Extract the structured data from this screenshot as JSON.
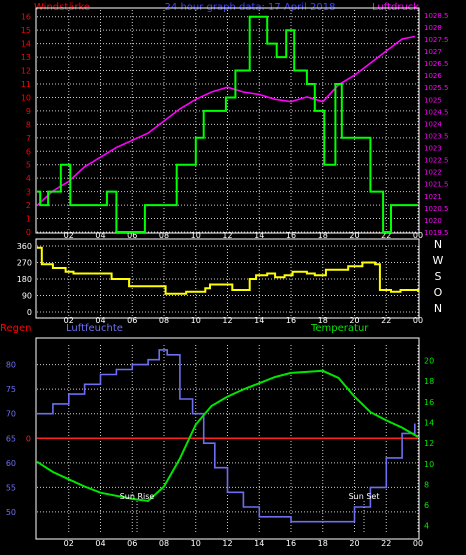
{
  "colors": {
    "background": "#000000",
    "frame": "#ffffff",
    "wind": "#00ff00",
    "pressure": "#ff00ff",
    "direction": "#ffff00",
    "humidity": "#6e6ef0",
    "temperature": "#00e600",
    "rain": "#ff2020",
    "title": "#4040ff",
    "left_label": "#ff0000",
    "right_label": "#ff00ff",
    "humidity_label": "#6e6ef0",
    "temperature_label": "#00e600",
    "ticks_white": "#ffffff",
    "dotted": "#cccccc"
  },
  "header": {
    "left": "Windstärke",
    "title": "24 hour graph data: 17 April 2018",
    "right": "Luftdruck"
  },
  "labels": {
    "rain": "Regen",
    "humidity": "Luftfeuchte",
    "temperature": "Temperatur",
    "sunrise": "Sun Rise",
    "sunset": "Sun Set"
  },
  "compass": [
    "N",
    "W",
    "S",
    "O",
    "N"
  ],
  "chart_data": [
    {
      "type": "line",
      "name": "wind_pressure",
      "xticks": [
        "02",
        "04",
        "06",
        "08",
        "10",
        "12",
        "14",
        "16",
        "18",
        "20",
        "22",
        "00"
      ],
      "yticks_left": [
        "0",
        "1",
        "2",
        "3",
        "4",
        "5",
        "6",
        "7",
        "8",
        "9",
        "10",
        "11",
        "12",
        "13",
        "14",
        "15",
        "16"
      ],
      "yticks_right": [
        "1019.5",
        "1020",
        "1020.5",
        "1021",
        "1021.5",
        "1022",
        "1022.5",
        "1023",
        "1023.5",
        "1024",
        "1024.5",
        "1025",
        "1025.5",
        "1026",
        "1026.5",
        "1027",
        "1027.5",
        "1028",
        "1028.5"
      ],
      "ylim_left": [
        0,
        16.5
      ],
      "ylim_right": [
        1019.5,
        1028.7
      ],
      "series": [
        {
          "name": "Windstärke",
          "axis": "left",
          "step": true,
          "x": [
            0,
            0.2,
            0.7,
            1.5,
            2.1,
            4.4,
            5.0,
            6.8,
            8.8,
            10.0,
            10.5,
            11.9,
            12.5,
            13.4,
            14.5,
            15.1,
            15.7,
            16.2,
            17.0,
            17.5,
            18.1,
            18.8,
            19.2,
            21.0,
            21.8,
            22.3,
            24
          ],
          "y": [
            3,
            2,
            3,
            5,
            2,
            3,
            0,
            2,
            5,
            7,
            9,
            10,
            12,
            16,
            14,
            13,
            15,
            12,
            11,
            9,
            5,
            11,
            7,
            3,
            0,
            2,
            2
          ]
        },
        {
          "name": "Luftdruck",
          "axis": "right",
          "x": [
            0,
            1,
            2,
            3,
            4,
            5,
            6,
            7,
            8,
            9,
            10,
            11,
            12,
            13,
            14,
            15,
            16,
            17,
            18,
            19,
            20,
            21,
            22,
            23,
            23.8
          ],
          "y": [
            1020.6,
            1021.2,
            1021.6,
            1022.2,
            1022.6,
            1023.0,
            1023.3,
            1023.6,
            1024.1,
            1024.6,
            1025.0,
            1025.3,
            1025.5,
            1025.3,
            1025.2,
            1025.0,
            1024.9,
            1025.1,
            1024.9,
            1025.6,
            1026.0,
            1026.5,
            1027.0,
            1027.5,
            1027.6
          ]
        }
      ]
    },
    {
      "type": "line",
      "name": "wind_direction",
      "xticks": [
        "02",
        "04",
        "06",
        "08",
        "10",
        "12",
        "14",
        "16",
        "18",
        "20",
        "22",
        "00"
      ],
      "yticks": [
        "0",
        "90",
        "180",
        "270",
        "360"
      ],
      "ylim": [
        0,
        360
      ],
      "series": [
        {
          "name": "direction",
          "step": true,
          "x": [
            0,
            0.3,
            1.0,
            1.8,
            2.3,
            4.7,
            5.8,
            8.1,
            9.4,
            10.6,
            10.9,
            12.3,
            13.4,
            13.8,
            14.5,
            15.0,
            15.6,
            16.1,
            17.0,
            17.5,
            18.2,
            19.6,
            20.5,
            21.3,
            21.6,
            22.3,
            22.9,
            24
          ],
          "y": [
            350,
            260,
            240,
            220,
            210,
            180,
            140,
            100,
            110,
            130,
            150,
            120,
            180,
            200,
            210,
            190,
            200,
            220,
            210,
            200,
            230,
            250,
            270,
            260,
            120,
            110,
            120,
            110
          ]
        }
      ]
    },
    {
      "type": "line",
      "name": "humidity_temperature",
      "xticks": [
        "02",
        "04",
        "06",
        "08",
        "10",
        "12",
        "14",
        "16",
        "18",
        "20",
        "22",
        "00"
      ],
      "yticks_left": [
        "50",
        "55",
        "60",
        "65",
        "70",
        "75",
        "80"
      ],
      "yticks_right": [
        "4",
        "6",
        "8",
        "10",
        "12",
        "14",
        "16",
        "18",
        "20"
      ],
      "ylim_left": [
        45.5,
        84
      ],
      "ylim_right": [
        3.2,
        21.5
      ],
      "rain_line": 0,
      "rain_line_position_left": 65,
      "sunrise_x": 6.3,
      "sunset_x": 20.6,
      "series": [
        {
          "name": "Luftfeuchte",
          "axis": "left",
          "step": true,
          "x": [
            0,
            1,
            2,
            3,
            4,
            5,
            6,
            7,
            7.7,
            8.2,
            9.0,
            9.8,
            10.5,
            11.2,
            12.0,
            13.0,
            14.0,
            15.0,
            16.0,
            17.0,
            18.0,
            19.0,
            20.0,
            21.0,
            22.0,
            23.0,
            23.8
          ],
          "y": [
            70,
            72,
            74,
            76,
            78,
            79,
            80,
            81,
            83,
            82,
            73,
            70,
            64,
            59,
            54,
            51,
            49,
            49,
            48,
            48,
            48,
            48,
            51,
            55,
            61,
            66,
            68
          ]
        },
        {
          "name": "Temperatur",
          "axis": "right",
          "x": [
            0,
            1,
            2,
            3,
            4,
            5,
            6,
            7,
            8,
            9,
            10,
            11,
            12,
            13,
            14,
            15,
            16,
            17,
            18,
            19,
            20,
            21,
            22,
            23,
            24
          ],
          "y": [
            10.2,
            9.2,
            8.5,
            7.8,
            7.2,
            6.9,
            6.6,
            6.4,
            7.8,
            10.5,
            13.8,
            15.6,
            16.5,
            17.2,
            17.8,
            18.4,
            18.8,
            18.9,
            19.0,
            18.3,
            16.5,
            15.0,
            14.2,
            13.5,
            12.6
          ]
        }
      ]
    }
  ]
}
